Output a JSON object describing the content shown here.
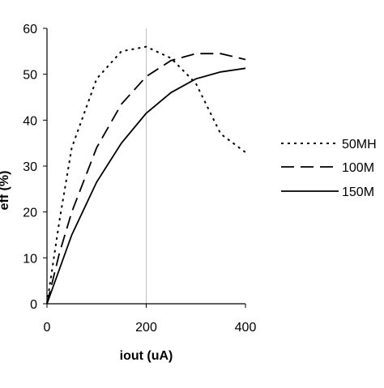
{
  "chart_data": {
    "type": "line",
    "title": "",
    "xlabel": "iout (uA)",
    "ylabel": "eff (%)",
    "xlim": [
      0,
      400
    ],
    "ylim": [
      0,
      60
    ],
    "x_ticks": [
      "0",
      "200",
      "400"
    ],
    "y_ticks": [
      "0",
      "10",
      "20",
      "30",
      "40",
      "50",
      "60"
    ],
    "grid": "vertical-only",
    "legend_placement": "right",
    "series": [
      {
        "name": "50MH",
        "dash": "dotted",
        "x": [
          0,
          25,
          50,
          100,
          150,
          200,
          250,
          300,
          350,
          400
        ],
        "y": [
          0,
          18,
          34,
          49,
          55,
          56,
          53.5,
          48,
          37,
          33
        ]
      },
      {
        "name": "100M",
        "dash": "dashed",
        "x": [
          0,
          25,
          50,
          100,
          150,
          200,
          250,
          300,
          350,
          400
        ],
        "y": [
          0,
          11,
          20,
          34,
          43.5,
          49.5,
          53,
          54.5,
          54.5,
          53.2
        ]
      },
      {
        "name": "150M",
        "dash": "solid",
        "x": [
          0,
          25,
          50,
          100,
          150,
          200,
          250,
          300,
          350,
          400
        ],
        "y": [
          0,
          7.5,
          15,
          26.5,
          35,
          41.5,
          46,
          49,
          50.5,
          51.3
        ]
      }
    ],
    "colors": {
      "lines": "#000000",
      "grid": "#c0c0c0",
      "axis": "#000000"
    }
  }
}
